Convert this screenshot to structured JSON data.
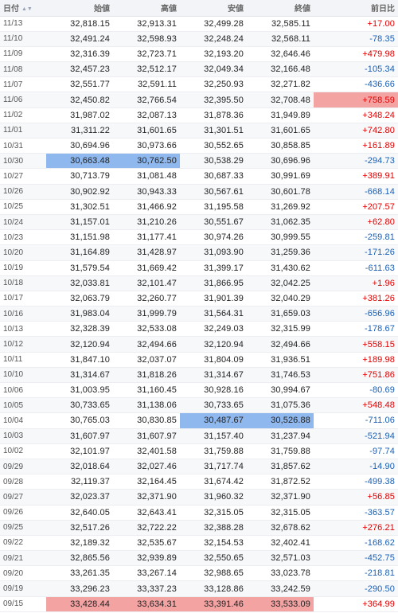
{
  "headers": {
    "date": "日付",
    "open": "始値",
    "high": "高値",
    "low": "安値",
    "close": "終値",
    "change": "前日比"
  },
  "icons": {
    "sort": "sort-asc-desc-icon"
  },
  "colors": {
    "positive": "#e00000",
    "negative": "#1a5fb4",
    "highlight_blue": "#8fb8ee",
    "highlight_red": "#f4a3a3"
  },
  "rows": [
    {
      "date": "11/13",
      "open": "32,818.15",
      "high": "32,913.31",
      "low": "32,499.28",
      "close": "32,585.11",
      "change": "+17.00"
    },
    {
      "date": "11/10",
      "open": "32,491.24",
      "high": "32,598.93",
      "low": "32,248.24",
      "close": "32,568.11",
      "change": "-78.35"
    },
    {
      "date": "11/09",
      "open": "32,316.39",
      "high": "32,723.71",
      "low": "32,193.20",
      "close": "32,646.46",
      "change": "+479.98"
    },
    {
      "date": "11/08",
      "open": "32,457.23",
      "high": "32,512.17",
      "low": "32,049.34",
      "close": "32,166.48",
      "change": "-105.34"
    },
    {
      "date": "11/07",
      "open": "32,551.77",
      "high": "32,591.11",
      "low": "32,250.93",
      "close": "32,271.82",
      "change": "-436.66"
    },
    {
      "date": "11/06",
      "open": "32,450.82",
      "high": "32,766.54",
      "low": "32,395.50",
      "close": "32,708.48",
      "change": "+758.59",
      "hl": {
        "change": "red"
      }
    },
    {
      "date": "11/02",
      "open": "31,987.02",
      "high": "32,087.13",
      "low": "31,878.36",
      "close": "31,949.89",
      "change": "+348.24"
    },
    {
      "date": "11/01",
      "open": "31,311.22",
      "high": "31,601.65",
      "low": "31,301.51",
      "close": "31,601.65",
      "change": "+742.80"
    },
    {
      "date": "10/31",
      "open": "30,694.96",
      "high": "30,973.66",
      "low": "30,552.65",
      "close": "30,858.85",
      "change": "+161.89"
    },
    {
      "date": "10/30",
      "open": "30,663.48",
      "high": "30,762.50",
      "low": "30,538.29",
      "close": "30,696.96",
      "change": "-294.73",
      "hl": {
        "open": "blue",
        "high": "blue"
      }
    },
    {
      "date": "10/27",
      "open": "30,713.79",
      "high": "31,081.48",
      "low": "30,687.33",
      "close": "30,991.69",
      "change": "+389.91"
    },
    {
      "date": "10/26",
      "open": "30,902.92",
      "high": "30,943.33",
      "low": "30,567.61",
      "close": "30,601.78",
      "change": "-668.14"
    },
    {
      "date": "10/25",
      "open": "31,302.51",
      "high": "31,466.92",
      "low": "31,195.58",
      "close": "31,269.92",
      "change": "+207.57"
    },
    {
      "date": "10/24",
      "open": "31,157.01",
      "high": "31,210.26",
      "low": "30,551.67",
      "close": "31,062.35",
      "change": "+62.80"
    },
    {
      "date": "10/23",
      "open": "31,151.98",
      "high": "31,177.41",
      "low": "30,974.26",
      "close": "30,999.55",
      "change": "-259.81"
    },
    {
      "date": "10/20",
      "open": "31,164.89",
      "high": "31,428.97",
      "low": "31,093.90",
      "close": "31,259.36",
      "change": "-171.26"
    },
    {
      "date": "10/19",
      "open": "31,579.54",
      "high": "31,669.42",
      "low": "31,399.17",
      "close": "31,430.62",
      "change": "-611.63"
    },
    {
      "date": "10/18",
      "open": "32,033.81",
      "high": "32,101.47",
      "low": "31,866.95",
      "close": "32,042.25",
      "change": "+1.96"
    },
    {
      "date": "10/17",
      "open": "32,063.79",
      "high": "32,260.77",
      "low": "31,901.39",
      "close": "32,040.29",
      "change": "+381.26"
    },
    {
      "date": "10/16",
      "open": "31,983.04",
      "high": "31,999.79",
      "low": "31,564.31",
      "close": "31,659.03",
      "change": "-656.96"
    },
    {
      "date": "10/13",
      "open": "32,328.39",
      "high": "32,533.08",
      "low": "32,249.03",
      "close": "32,315.99",
      "change": "-178.67"
    },
    {
      "date": "10/12",
      "open": "32,120.94",
      "high": "32,494.66",
      "low": "32,120.94",
      "close": "32,494.66",
      "change": "+558.15"
    },
    {
      "date": "10/11",
      "open": "31,847.10",
      "high": "32,037.07",
      "low": "31,804.09",
      "close": "31,936.51",
      "change": "+189.98"
    },
    {
      "date": "10/10",
      "open": "31,314.67",
      "high": "31,818.26",
      "low": "31,314.67",
      "close": "31,746.53",
      "change": "+751.86"
    },
    {
      "date": "10/06",
      "open": "31,003.95",
      "high": "31,160.45",
      "low": "30,928.16",
      "close": "30,994.67",
      "change": "-80.69"
    },
    {
      "date": "10/05",
      "open": "30,733.65",
      "high": "31,138.06",
      "low": "30,733.65",
      "close": "31,075.36",
      "change": "+548.48"
    },
    {
      "date": "10/04",
      "open": "30,765.03",
      "high": "30,830.85",
      "low": "30,487.67",
      "close": "30,526.88",
      "change": "-711.06",
      "hl": {
        "low": "blue",
        "close": "blue"
      }
    },
    {
      "date": "10/03",
      "open": "31,607.97",
      "high": "31,607.97",
      "low": "31,157.40",
      "close": "31,237.94",
      "change": "-521.94"
    },
    {
      "date": "10/02",
      "open": "32,101.97",
      "high": "32,401.58",
      "low": "31,759.88",
      "close": "31,759.88",
      "change": "-97.74"
    },
    {
      "date": "09/29",
      "open": "32,018.64",
      "high": "32,027.46",
      "low": "31,717.74",
      "close": "31,857.62",
      "change": "-14.90"
    },
    {
      "date": "09/28",
      "open": "32,119.37",
      "high": "32,164.45",
      "low": "31,674.42",
      "close": "31,872.52",
      "change": "-499.38"
    },
    {
      "date": "09/27",
      "open": "32,023.37",
      "high": "32,371.90",
      "low": "31,960.32",
      "close": "32,371.90",
      "change": "+56.85"
    },
    {
      "date": "09/26",
      "open": "32,640.05",
      "high": "32,643.41",
      "low": "32,315.05",
      "close": "32,315.05",
      "change": "-363.57"
    },
    {
      "date": "09/25",
      "open": "32,517.26",
      "high": "32,722.22",
      "low": "32,388.28",
      "close": "32,678.62",
      "change": "+276.21"
    },
    {
      "date": "09/22",
      "open": "32,189.32",
      "high": "32,535.67",
      "low": "32,154.53",
      "close": "32,402.41",
      "change": "-168.62"
    },
    {
      "date": "09/21",
      "open": "32,865.56",
      "high": "32,939.89",
      "low": "32,550.65",
      "close": "32,571.03",
      "change": "-452.75"
    },
    {
      "date": "09/20",
      "open": "33,261.35",
      "high": "33,267.14",
      "low": "32,988.65",
      "close": "33,023.78",
      "change": "-218.81"
    },
    {
      "date": "09/19",
      "open": "33,296.23",
      "high": "33,337.23",
      "low": "33,128.86",
      "close": "33,242.59",
      "change": "-290.50"
    },
    {
      "date": "09/15",
      "open": "33,428.44",
      "high": "33,634.31",
      "low": "33,391.46",
      "close": "33,533.09",
      "change": "+364.99",
      "hl": {
        "open": "red",
        "high": "red",
        "low": "red",
        "close": "red"
      }
    }
  ]
}
